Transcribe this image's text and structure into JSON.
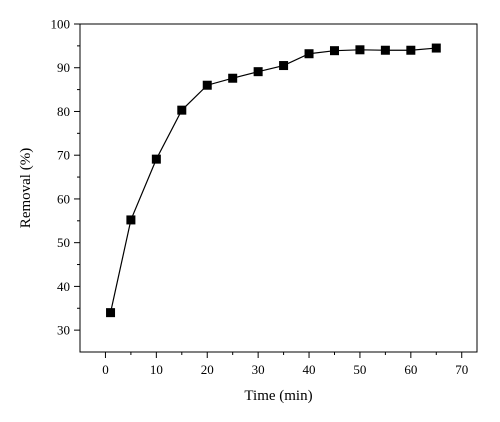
{
  "chart_data": {
    "type": "line",
    "title": "",
    "xlabel": "Time (min)",
    "ylabel": "Removal (%)",
    "xlim": [
      -5,
      73
    ],
    "ylim": [
      25,
      100
    ],
    "xticks": [
      0,
      10,
      20,
      30,
      40,
      50,
      60,
      70
    ],
    "yticks": [
      30,
      40,
      50,
      60,
      70,
      80,
      90,
      100
    ],
    "grid": false,
    "marker": "square",
    "color": "#000000",
    "series": [
      {
        "x": [
          1,
          5,
          10,
          15,
          20,
          25,
          30,
          35,
          40,
          45,
          50,
          55,
          60,
          65
        ],
        "y": [
          34,
          55.2,
          69.1,
          80.3,
          86,
          87.6,
          89.1,
          90.5,
          93.2,
          93.9,
          94.1,
          94,
          94,
          94.5
        ]
      }
    ]
  }
}
